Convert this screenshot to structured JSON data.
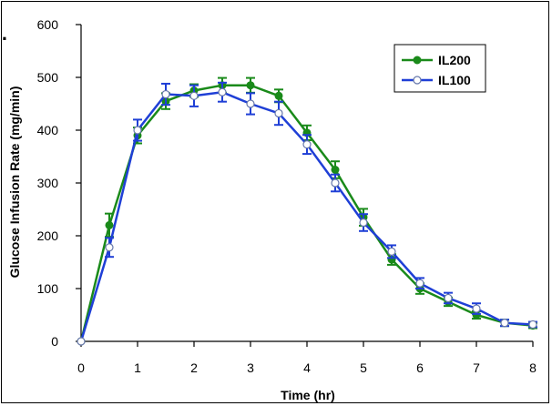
{
  "chart_data": {
    "type": "line",
    "panel_label": "B.",
    "xlabel": "Time (hr)",
    "ylabel": "Glucose Infusion Rate (mg/min)",
    "xlim": [
      0,
      8
    ],
    "ylim": [
      0,
      600
    ],
    "xticks": [
      0,
      1,
      2,
      3,
      4,
      5,
      6,
      7,
      8
    ],
    "yticks": [
      0,
      100,
      200,
      300,
      400,
      500,
      600
    ],
    "grid": false,
    "legend_position": "top-right",
    "x": [
      0,
      0.5,
      1,
      1.5,
      2,
      2.5,
      3,
      3.5,
      4,
      4.5,
      5,
      5.5,
      6,
      6.5,
      7,
      7.5,
      8
    ],
    "series": [
      {
        "name": "IL200",
        "color": "#1a8a1a",
        "marker": "filled-circle",
        "values": [
          0,
          220,
          390,
          455,
          475,
          485,
          485,
          465,
          395,
          325,
          235,
          155,
          100,
          75,
          50,
          35,
          30
        ],
        "errors": [
          0,
          22,
          15,
          15,
          12,
          14,
          14,
          12,
          14,
          16,
          16,
          10,
          10,
          8,
          7,
          6,
          5
        ]
      },
      {
        "name": "IL100",
        "color": "#1f3fd6",
        "marker": "open-circle",
        "values": [
          0,
          178,
          400,
          468,
          465,
          472,
          450,
          432,
          373,
          300,
          225,
          170,
          110,
          82,
          62,
          35,
          32
        ],
        "errors": [
          0,
          18,
          20,
          20,
          20,
          18,
          20,
          22,
          18,
          16,
          16,
          12,
          10,
          10,
          10,
          6,
          5
        ]
      }
    ]
  }
}
